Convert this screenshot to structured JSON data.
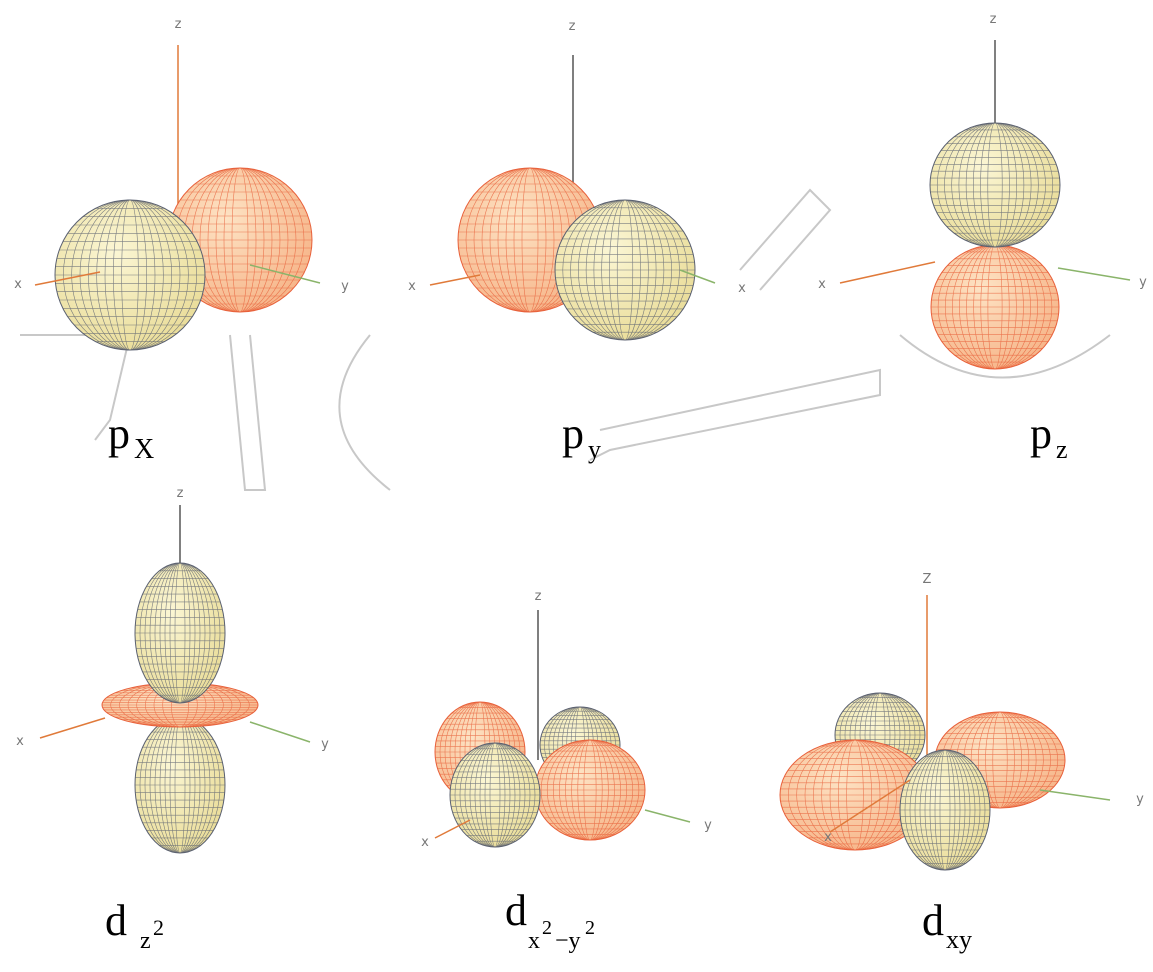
{
  "panels": [
    {
      "axes": {
        "z": "z",
        "x": "x",
        "y": "y"
      },
      "label": {
        "main": "p",
        "sub": "X"
      }
    },
    {
      "axes": {
        "z": "z",
        "x": "x",
        "y": "x"
      },
      "label": {
        "main": "p",
        "sub": "y"
      }
    },
    {
      "axes": {
        "z": "z",
        "x": "x",
        "y": "y"
      },
      "label": {
        "main": "p",
        "sub": "z"
      }
    },
    {
      "axes": {
        "z": "z",
        "x": "x",
        "y": "y"
      },
      "label": {
        "main": "d",
        "sub": "z",
        "sup": "2"
      }
    },
    {
      "axes": {
        "z": "z",
        "x": "x",
        "y": "y"
      },
      "label": {
        "main": "d",
        "sub": [
          {
            "text": "x",
            "sup": "2"
          },
          {
            "text": "−y",
            "sup": "2"
          }
        ]
      }
    },
    {
      "axes": {
        "z": "Z",
        "x": "x",
        "y": "y"
      },
      "label": {
        "main": "d",
        "sub": "xy"
      }
    }
  ]
}
